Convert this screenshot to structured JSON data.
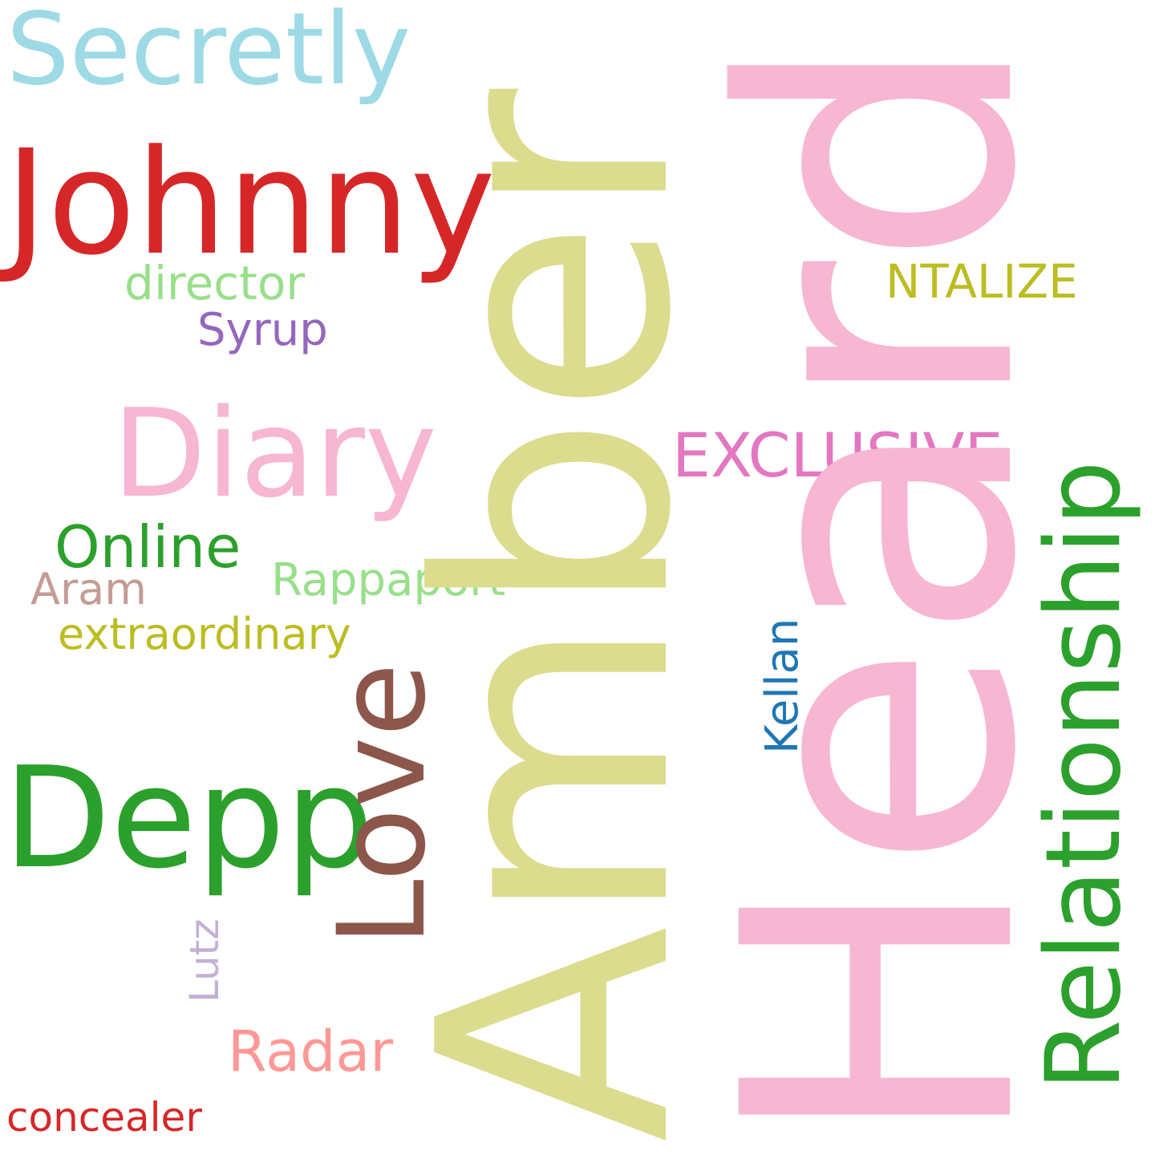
{
  "words": {
    "amber": {
      "text": "Amber",
      "color": "#dbdc8d"
    },
    "heard": {
      "text": "Heard",
      "color": "#f7b6d2"
    },
    "secretly": {
      "text": "Secretly",
      "color": "#9edae5"
    },
    "johnny": {
      "text": "Johnny",
      "color": "#d62728"
    },
    "director": {
      "text": "director",
      "color": "#98df8a"
    },
    "syrup": {
      "text": "Syrup",
      "color": "#9467bd"
    },
    "diary": {
      "text": "Diary",
      "color": "#f7b6d2"
    },
    "ntalize": {
      "text": "NTALIZE",
      "color": "#bcbd22"
    },
    "exclusive": {
      "text": "EXCLUSIVE",
      "color": "#e377c2"
    },
    "relationship": {
      "text": "Relationship",
      "color": "#2ca02c"
    },
    "online": {
      "text": "Online",
      "color": "#2ca02c"
    },
    "aram": {
      "text": "Aram",
      "color": "#c49c94"
    },
    "rappaport": {
      "text": "Rappaport",
      "color": "#98df8a"
    },
    "extraordinary": {
      "text": "extraordinary",
      "color": "#bcbd22"
    },
    "kellan": {
      "text": "Kellan",
      "color": "#1f77b4"
    },
    "love": {
      "text": "Love",
      "color": "#8c564b"
    },
    "depp": {
      "text": "Depp",
      "color": "#2ca02c"
    },
    "lutz": {
      "text": "Lutz",
      "color": "#c5b0d5"
    },
    "radar": {
      "text": "Radar",
      "color": "#ff9896"
    },
    "concealer": {
      "text": "concealer",
      "color": "#d62728"
    }
  }
}
